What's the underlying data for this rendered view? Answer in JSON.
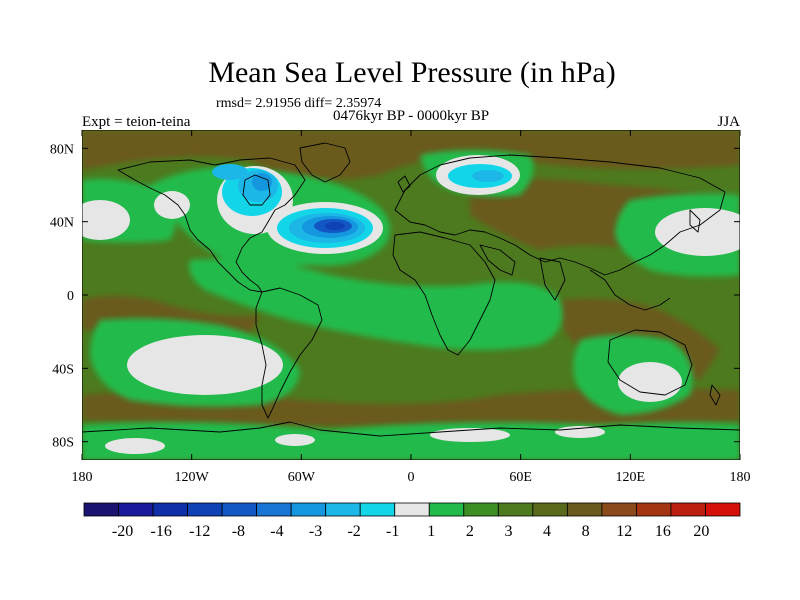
{
  "chart_data": {
    "type": "heatmap",
    "title": "Mean Sea Level Pressure (in hPa)",
    "stats_line": "rmsd= 2.91956 diff= 2.35974",
    "subtitle": "0476kyr BP - 0000kyr BP",
    "left_label": "Expt = teion-teina",
    "right_label": "JJA",
    "x_axis": {
      "range": [
        -180,
        180
      ],
      "ticks": [
        -180,
        -120,
        -60,
        0,
        60,
        120,
        180
      ],
      "tick_labels": [
        "180",
        "120W",
        "60W",
        "0",
        "60E",
        "120E",
        "180"
      ]
    },
    "y_axis": {
      "range": [
        -90,
        90
      ],
      "ticks": [
        80,
        40,
        0,
        -40,
        -80
      ],
      "tick_labels": [
        "80N",
        "40N",
        "0",
        "40S",
        "80S"
      ]
    },
    "colorbar": {
      "levels": [
        "-20",
        "-16",
        "-12",
        "-8",
        "-4",
        "-3",
        "-2",
        "-1",
        "1",
        "2",
        "3",
        "4",
        "8",
        "12",
        "16",
        "20"
      ],
      "colors": [
        "#1a1470",
        "#191a99",
        "#0e2fa8",
        "#0f42b4",
        "#1357c4",
        "#1a74d4",
        "#1497de",
        "#1cb7e6",
        "#12d6e8",
        "#e6e6e6",
        "#22bb4b",
        "#3e8f23",
        "#4d7a1e",
        "#5a6a1c",
        "#6b5a1f",
        "#8a4a1a",
        "#a33512",
        "#bc1f0e",
        "#d5100a"
      ]
    },
    "regions": [
      {
        "name": "background-positive",
        "range": "3 to 4"
      },
      {
        "name": "north-atlantic-low",
        "range": "-8 to -4",
        "lon": -45,
        "lat": 38
      },
      {
        "name": "south-pacific-neutral",
        "range": "-1 to 1",
        "lon": -120,
        "lat": -25
      },
      {
        "name": "north-pacific-neutral",
        "range": "-1 to 1",
        "lon": 150,
        "lat": 40
      },
      {
        "name": "australia-neutral",
        "range": "-1 to 1",
        "lon": 115,
        "lat": -30
      },
      {
        "name": "europe-low",
        "range": "-3 to -1",
        "lon": 40,
        "lat": 66
      }
    ]
  },
  "colors": {
    "positive_bg": "#4d7a1e",
    "land_brown": "#5a6a1c",
    "green": "#22bb4b",
    "neutral": "#e6e6e6"
  }
}
